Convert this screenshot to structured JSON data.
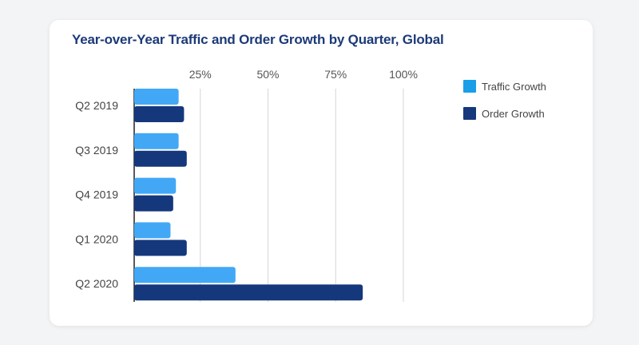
{
  "chart_data": {
    "type": "bar",
    "orientation": "horizontal",
    "title": "Year-over-Year Traffic and Order Growth by Quarter, Global",
    "categories": [
      "Q2 2019",
      "Q3 2019",
      "Q4 2019",
      "Q1 2020",
      "Q2 2020"
    ],
    "series": [
      {
        "name": "Traffic Growth",
        "color": "#42a8f5",
        "values": [
          17,
          17,
          16,
          14,
          38
        ]
      },
      {
        "name": "Order Growth",
        "color": "#15377c",
        "values": [
          19,
          20,
          15,
          20,
          85
        ]
      }
    ],
    "xticks": [
      "25%",
      "50%",
      "75%",
      "100%"
    ],
    "xtick_values": [
      25,
      50,
      75,
      100
    ],
    "xlim": [
      0,
      100
    ],
    "unit": "%",
    "grid": true,
    "legend": {
      "position": "right",
      "colors": [
        "#1a9ee8",
        "#15377c"
      ]
    }
  }
}
